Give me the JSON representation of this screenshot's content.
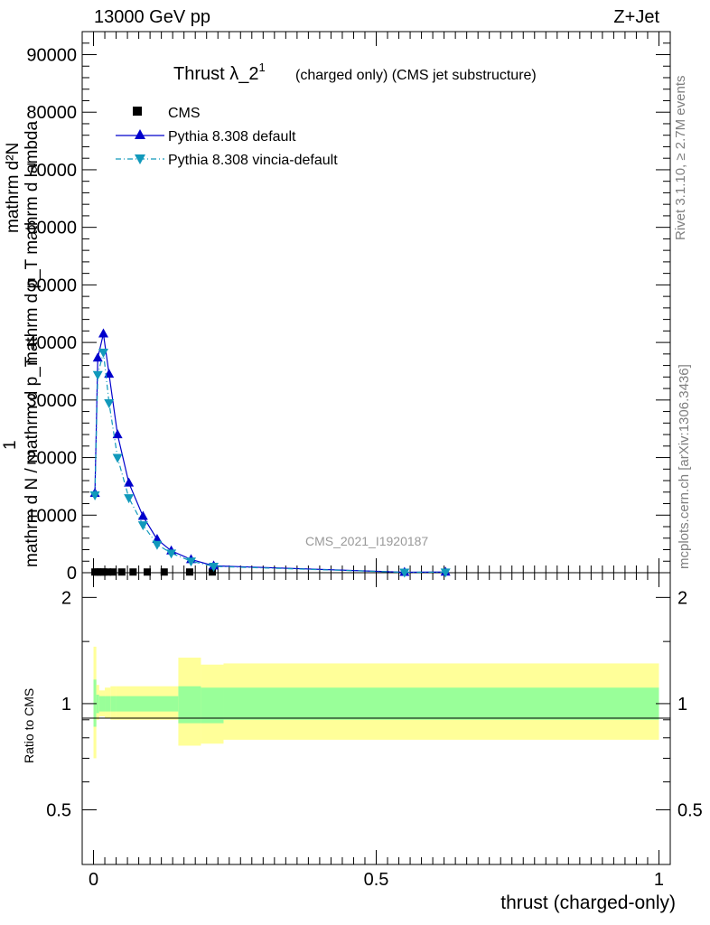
{
  "header": {
    "energy": "13000 GeV pp",
    "process": "Z+Jet"
  },
  "side_labels": {
    "rivet": "Rivet 3.1.10, ≥ 2.7M events",
    "mcplots": "mcplots.cern.ch [arXiv:1306.3436]"
  },
  "chart_data": [
    {
      "type": "line",
      "title": "Thrust λ_2",
      "title_sup": "1",
      "subtitle": "(charged only) (CMS jet substructure)",
      "watermark": "CMS_2021_I1920187",
      "ylabel_parts": [
        "1",
        "mathrm d N / mathrm d p_T",
        "mathrm d²N",
        "mathrm d p_T mathrm d lambda"
      ],
      "xlim": [
        -0.02,
        1.02
      ],
      "ylim": [
        0,
        94000
      ],
      "y_ticks": [
        0,
        10000,
        20000,
        30000,
        40000,
        50000,
        60000,
        70000,
        80000,
        90000
      ],
      "y_tick_labels": [
        "0",
        "10000",
        "20000",
        "30000",
        "40000",
        "50000",
        "60000",
        "70000",
        "80000",
        "90000"
      ],
      "legend_position": "top-left",
      "series": [
        {
          "name": "CMS",
          "style": "square-markers",
          "color": "#000000",
          "x": [
            0.0025,
            0.0075,
            0.0125,
            0.0175,
            0.025,
            0.035,
            0.05,
            0.07,
            0.095,
            0.125,
            0.17,
            0.21
          ],
          "y": [
            120,
            120,
            120,
            120,
            120,
            120,
            120,
            120,
            120,
            120,
            120,
            120
          ]
        },
        {
          "name": "Pythia 8.308 default",
          "style": "solid-triangle-up",
          "color": "#0000cc",
          "x": [
            0.0025,
            0.0075,
            0.0175,
            0.0275,
            0.0425,
            0.0625,
            0.0875,
            0.1125,
            0.1375,
            0.1725,
            0.2125,
            0.55,
            0.6225
          ],
          "y": [
            13800,
            37300,
            41500,
            34500,
            24000,
            15600,
            9800,
            5800,
            3800,
            2300,
            1200,
            80,
            120
          ]
        },
        {
          "name": "Pythia 8.308 vincia-default",
          "style": "dashdot-triangle-down",
          "color": "#1199bb",
          "x": [
            0.0025,
            0.0075,
            0.0175,
            0.0275,
            0.0425,
            0.0625,
            0.0875,
            0.1125,
            0.1375,
            0.1725,
            0.2125,
            0.55,
            0.6225
          ],
          "y": [
            13500,
            34400,
            38300,
            29500,
            20000,
            13000,
            8300,
            4900,
            3400,
            2000,
            1100,
            70,
            100
          ]
        }
      ]
    },
    {
      "type": "area",
      "ylabel": "Ratio to CMS",
      "xlabel": "thrust (charged-only)",
      "xlim": [
        -0.02,
        1.02
      ],
      "ylim": [
        0.35,
        2.35
      ],
      "log_y": true,
      "y_ticks": [
        0.5,
        1,
        2
      ],
      "y_tick_labels": [
        "0.5",
        "1",
        "2"
      ],
      "x_ticks": [
        0,
        0.5,
        1
      ],
      "x_tick_labels": [
        "0",
        "0.5",
        "1"
      ],
      "band_colors": {
        "outer": "#ffff99",
        "inner": "#99ff99"
      },
      "bins": [
        {
          "x0": 0.0,
          "x1": 0.005,
          "outer": [
            0.7,
            1.45
          ],
          "inner": [
            0.86,
            1.17
          ]
        },
        {
          "x0": 0.005,
          "x1": 0.01,
          "outer": [
            0.9,
            1.13
          ],
          "inner": [
            0.94,
            1.06
          ]
        },
        {
          "x0": 0.01,
          "x1": 0.02,
          "outer": [
            0.92,
            1.09
          ],
          "inner": [
            0.95,
            1.05
          ]
        },
        {
          "x0": 0.02,
          "x1": 0.03,
          "outer": [
            0.91,
            1.11
          ],
          "inner": [
            0.95,
            1.05
          ]
        },
        {
          "x0": 0.03,
          "x1": 0.04,
          "outer": [
            0.9,
            1.12
          ],
          "inner": [
            0.95,
            1.05
          ]
        },
        {
          "x0": 0.04,
          "x1": 0.15,
          "outer": [
            0.9,
            1.12
          ],
          "inner": [
            0.95,
            1.05
          ]
        },
        {
          "x0": 0.15,
          "x1": 0.19,
          "outer": [
            0.76,
            1.35
          ],
          "inner": [
            0.88,
            1.12
          ]
        },
        {
          "x0": 0.19,
          "x1": 0.23,
          "outer": [
            0.77,
            1.29
          ],
          "inner": [
            0.88,
            1.11
          ]
        },
        {
          "x0": 0.23,
          "x1": 1.0,
          "outer": [
            0.79,
            1.3
          ],
          "inner": [
            0.9,
            1.11
          ]
        }
      ]
    }
  ]
}
